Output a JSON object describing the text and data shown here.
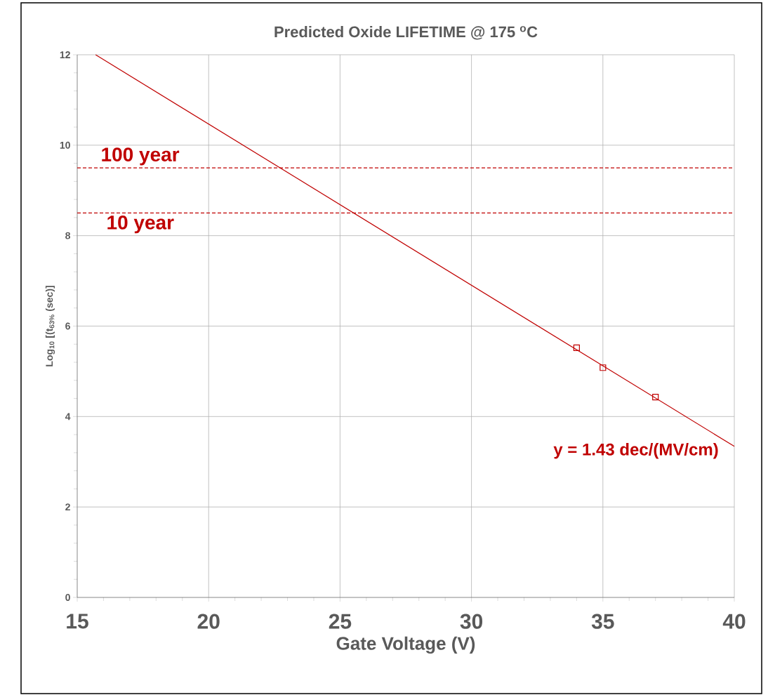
{
  "chart_data": {
    "type": "scatter",
    "title": "Predicted Oxide LIFETIME @ 175 $^{o}$C",
    "xlabel": "Gate Voltage (V)",
    "ylabel": "Log$_{10}$ [(t$_{63%}$ (sec)]",
    "xlim": [
      15,
      40
    ],
    "xticks": [
      15,
      20,
      25,
      30,
      35,
      40
    ],
    "ylim": [
      0,
      12
    ],
    "yticks": [
      0,
      2,
      4,
      6,
      8,
      10,
      12
    ],
    "grid": true,
    "series": [
      {
        "marker": "square",
        "color": "#c00000",
        "x": [
          34,
          35,
          37
        ],
        "values": [
          5.52,
          5.08,
          4.43
        ]
      },
      {
        "type": "line",
        "marker": "none",
        "color": "#c00000",
        "x": [
          15.7,
          40
        ],
        "values": [
          12,
          3.34
        ]
      }
    ],
    "ref_lines": [
      {
        "axis": "y",
        "value": 9.5,
        "label": "100 year",
        "color": "#c00000",
        "line_style": "dashed"
      },
      {
        "axis": "y",
        "value": 8.5,
        "label": "10 year",
        "color": "#c00000",
        "line_style": "dashed"
      }
    ],
    "annotations": [
      "y = 1.43 dec/(MV/cm)"
    ]
  }
}
